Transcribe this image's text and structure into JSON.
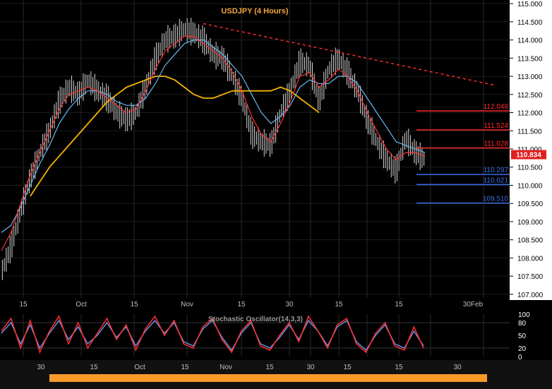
{
  "chart_data": {
    "type": "line",
    "title": "USDJPY (4 Hours)",
    "price_axis": {
      "ylim": [
        106.9,
        115.1
      ],
      "ticks": [
        "115.000",
        "114.500",
        "114.000",
        "113.500",
        "113.000",
        "112.500",
        "112.000",
        "111.500",
        "111.000",
        "110.500",
        "110.000",
        "109.500",
        "109.000",
        "108.500",
        "108.000",
        "107.500",
        "107.000"
      ]
    },
    "x_ticks_main": [
      "15",
      "Oct",
      "15",
      "Nov",
      "15",
      "30",
      "15",
      "15",
      "30Feb"
    ],
    "x_ticks_lower": [
      "30",
      "15",
      "Oct",
      "15",
      "Nov",
      "15",
      "30",
      "15",
      "15",
      "30"
    ],
    "current_price": "110.834",
    "levels": [
      {
        "label": "112.048",
        "value": 112.048,
        "color": "#ff2a2a"
      },
      {
        "label": "111.524",
        "value": 111.524,
        "color": "#ff2a2a"
      },
      {
        "label": "111.028",
        "value": 111.028,
        "color": "#ff2a2a"
      },
      {
        "label": "110.297",
        "value": 110.297,
        "color": "#3a6ee8"
      },
      {
        "label": "110.021",
        "value": 110.021,
        "color": "#3a6ee8"
      },
      {
        "label": "109.510",
        "value": 109.51,
        "color": "#3a6ee8"
      }
    ],
    "trendline": {
      "from": 114.45,
      "to": 112.75,
      "color": "#ff2a2a",
      "style": "dashed"
    },
    "price_series": [
      107.6,
      108.3,
      109.3,
      110.2,
      110.9,
      111.5,
      112.3,
      112.7,
      112.5,
      112.9,
      112.6,
      112.4,
      112.0,
      111.8,
      112.0,
      112.7,
      113.5,
      114.0,
      114.1,
      114.3,
      114.2,
      114.0,
      113.6,
      113.5,
      113.0,
      112.4,
      111.4,
      111.2,
      111.1,
      112.0,
      112.6,
      113.4,
      113.3,
      112.3,
      113.2,
      113.5,
      113.1,
      112.6,
      111.8,
      111.2,
      110.7,
      110.4,
      111.3,
      110.9,
      110.7
    ],
    "ma_fast": [
      108.2,
      108.7,
      109.5,
      110.3,
      110.9,
      111.5,
      112.1,
      112.5,
      112.6,
      112.7,
      112.6,
      112.4,
      112.2,
      112.0,
      112.1,
      112.6,
      113.2,
      113.7,
      113.9,
      114.1,
      114.1,
      113.9,
      113.7,
      113.5,
      113.1,
      112.6,
      111.9,
      111.4,
      111.2,
      111.7,
      112.3,
      113.0,
      113.1,
      112.7,
      112.9,
      113.2,
      113.0,
      112.6,
      112.0,
      111.5,
      111.0,
      110.7,
      110.9,
      110.9,
      110.8
    ],
    "ma_slow": [
      108.7,
      108.9,
      109.4,
      110.0,
      110.6,
      111.1,
      111.7,
      112.1,
      112.4,
      112.6,
      112.6,
      112.5,
      112.3,
      112.2,
      112.2,
      112.4,
      112.8,
      113.3,
      113.6,
      113.9,
      114.0,
      114.0,
      113.8,
      113.6,
      113.3,
      113.0,
      112.5,
      112.0,
      111.7,
      111.9,
      112.2,
      112.7,
      112.9,
      112.8,
      112.8,
      113.0,
      113.0,
      112.8,
      112.4,
      112.0,
      111.6,
      111.2,
      111.1,
      111.0,
      110.9
    ],
    "ma_long_start_index": 3,
    "ma_long": [
      109.7,
      110.1,
      110.5,
      110.8,
      111.1,
      111.4,
      111.7,
      112.0,
      112.3,
      112.5,
      112.7,
      112.8,
      112.9,
      113.0,
      113.0,
      112.9,
      112.7,
      112.5,
      112.4,
      112.4,
      112.5,
      112.6,
      112.6,
      112.6,
      112.6,
      112.6,
      112.7,
      112.6,
      112.4,
      112.2,
      112.0
    ],
    "ma_long_index_step": 1,
    "oscillator": {
      "title": "Stochastic Oscillator(14,3,3)",
      "ticks": [
        "100",
        "80",
        "50",
        "20",
        "0"
      ],
      "k": [
        60,
        90,
        20,
        85,
        10,
        60,
        95,
        30,
        80,
        20,
        55,
        90,
        40,
        75,
        15,
        65,
        95,
        50,
        85,
        30,
        20,
        70,
        90,
        40,
        10,
        60,
        85,
        25,
        15,
        50,
        80,
        35,
        95,
        60,
        20,
        75,
        90,
        30,
        10,
        55,
        80,
        25,
        15,
        70,
        20
      ],
      "d": [
        55,
        80,
        30,
        75,
        20,
        55,
        85,
        40,
        70,
        30,
        50,
        80,
        45,
        70,
        25,
        60,
        85,
        55,
        80,
        35,
        25,
        65,
        85,
        45,
        15,
        55,
        80,
        30,
        20,
        45,
        75,
        40,
        85,
        60,
        25,
        70,
        85,
        35,
        15,
        50,
        75,
        30,
        20,
        60,
        25
      ]
    },
    "colors": {
      "price": "#d8d8d8",
      "ma_fast": "#ff3030",
      "ma_slow": "#6ab8f0",
      "ma_long": "#f4b400",
      "osc_k": "#ff3030",
      "osc_d": "#6a8fe0",
      "axis_panel": "#ffffff",
      "scrollbar": "#f79a2a"
    }
  }
}
